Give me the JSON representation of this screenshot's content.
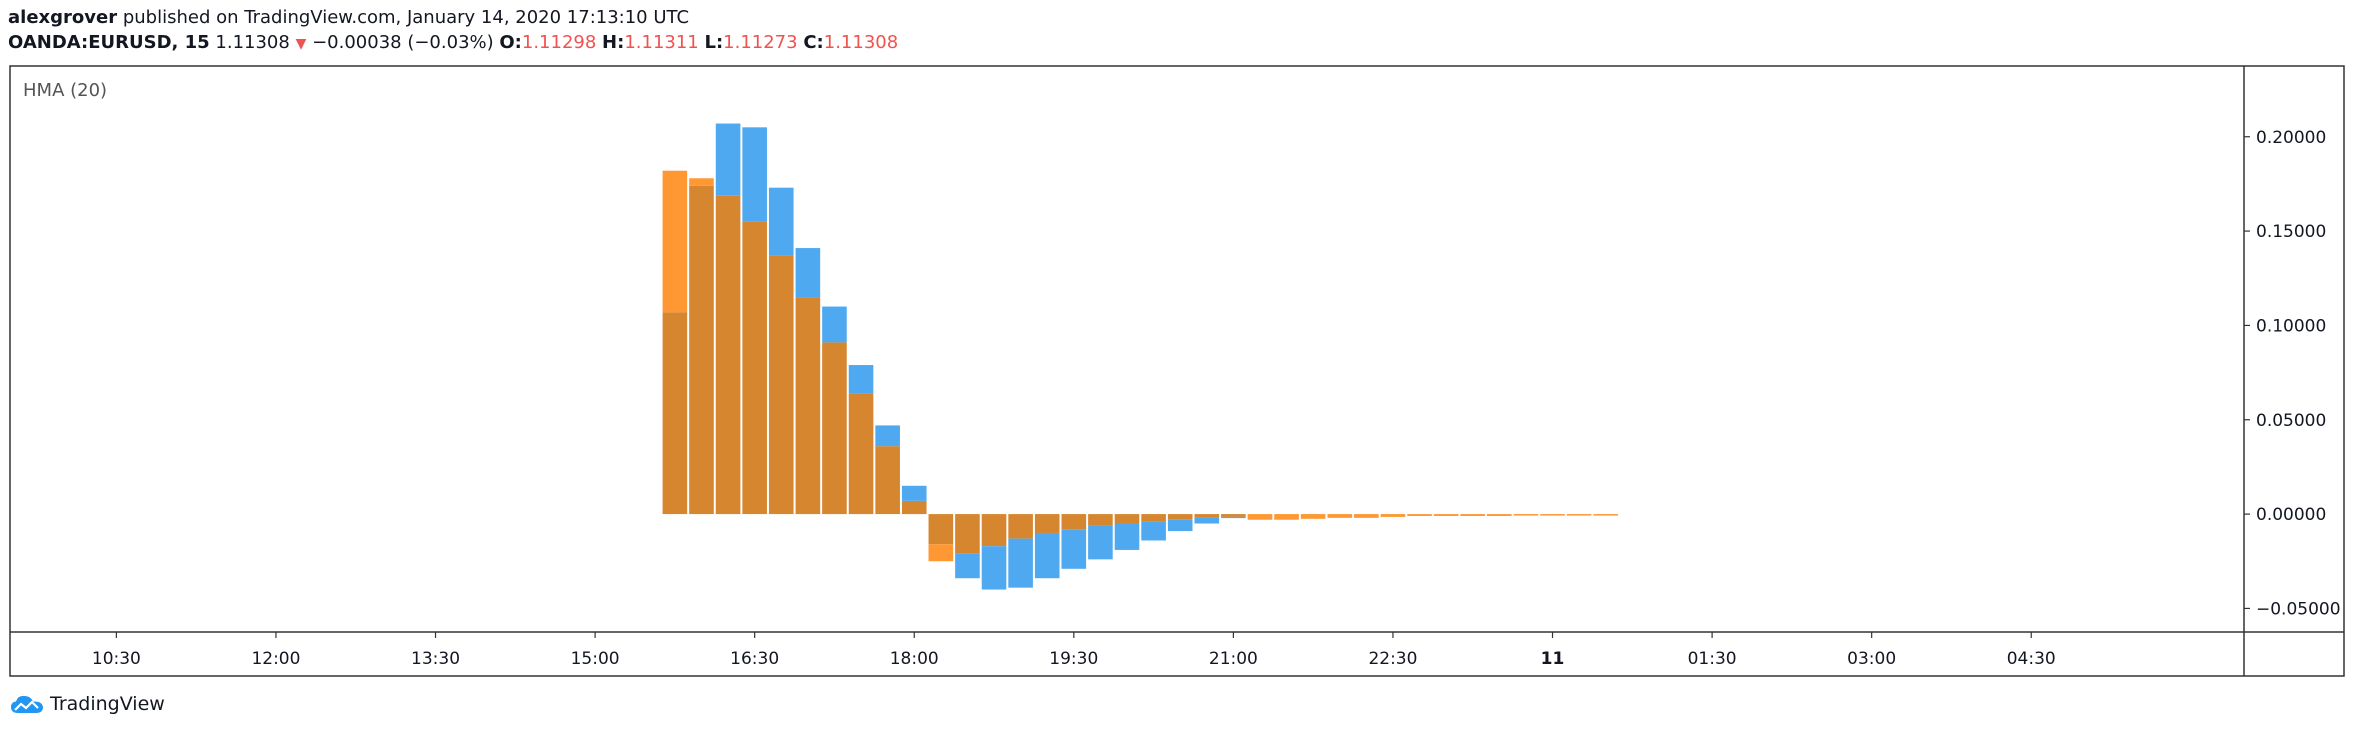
{
  "header": {
    "author": "alexgrover",
    "published_text": "published on TradingView.com, January 14, 2020 17:13:10 UTC",
    "symbol": "OANDA:EURUSD, 15",
    "last_price": "1.11308",
    "change": "−0.00038 (−0.03%)",
    "o_label": "O:",
    "o_value": "1.11298",
    "h_label": "H:",
    "h_value": "1.11311",
    "l_label": "L:",
    "l_value": "1.11273",
    "c_label": "C:",
    "c_value": "1.11308"
  },
  "footer": {
    "brand": "TradingView"
  },
  "colors": {
    "blue": "#4fa9f1",
    "orange": "#ff9733",
    "overlap": "#d6862f",
    "axis_text": "#131722",
    "border": "#333333"
  },
  "chart_data": {
    "type": "bar",
    "indicator_label": "HMA (20)",
    "ylim": [
      -0.0625,
      0.2375
    ],
    "y_ticks": [
      "0.20000",
      "0.15000",
      "0.10000",
      "0.05000",
      "0.00000",
      "−0.05000"
    ],
    "y_tick_values": [
      0.2,
      0.15,
      0.1,
      0.05,
      0.0,
      -0.05
    ],
    "x_ticks": [
      "10:30",
      "12:00",
      "13:30",
      "15:00",
      "16:30",
      "18:00",
      "19:30",
      "21:00",
      "22:30",
      "11",
      "01:30",
      "03:00",
      "04:30"
    ],
    "x_bold_ticks": [
      "11"
    ],
    "x_start": "09:30",
    "x_end": "06:30",
    "bar_interval_minutes": 15,
    "x": [
      "15:45",
      "16:00",
      "16:15",
      "16:30",
      "16:45",
      "17:00",
      "17:15",
      "17:30",
      "17:45",
      "18:00",
      "18:15",
      "18:30",
      "18:45",
      "19:00",
      "19:15",
      "19:30",
      "19:45",
      "20:00",
      "20:15",
      "20:30",
      "20:45",
      "21:00",
      "21:15",
      "21:30",
      "21:45",
      "22:00",
      "22:15",
      "22:30",
      "22:45",
      "23:00",
      "23:15",
      "23:30",
      "23:45",
      "00:00",
      "00:15",
      "00:30"
    ],
    "series": [
      {
        "name": "",
        "color": "#4fa9f1",
        "values": [
          0.107,
          0.174,
          0.207,
          0.205,
          0.173,
          0.141,
          0.11,
          0.079,
          0.047,
          0.015,
          -0.016,
          -0.034,
          -0.04,
          -0.039,
          -0.034,
          -0.029,
          -0.024,
          -0.019,
          -0.014,
          -0.009,
          -0.005,
          -0.002,
          0,
          0,
          0,
          0,
          0,
          0,
          0,
          0,
          0,
          0,
          0,
          0,
          0,
          0
        ]
      },
      {
        "name": "",
        "color": "#ff9733",
        "values": [
          0.182,
          0.178,
          0.169,
          0.155,
          0.137,
          0.115,
          0.091,
          0.064,
          0.036,
          0.007,
          -0.025,
          -0.021,
          -0.017,
          -0.013,
          -0.01,
          -0.008,
          -0.006,
          -0.005,
          -0.004,
          -0.003,
          -0.002,
          -0.0015,
          -0.003,
          -0.003,
          -0.0025,
          -0.002,
          -0.002,
          -0.0015,
          -0.001,
          -0.001,
          -0.001,
          -0.001,
          -0.0008,
          -0.0008,
          -0.0008,
          -0.0008
        ]
      }
    ]
  }
}
